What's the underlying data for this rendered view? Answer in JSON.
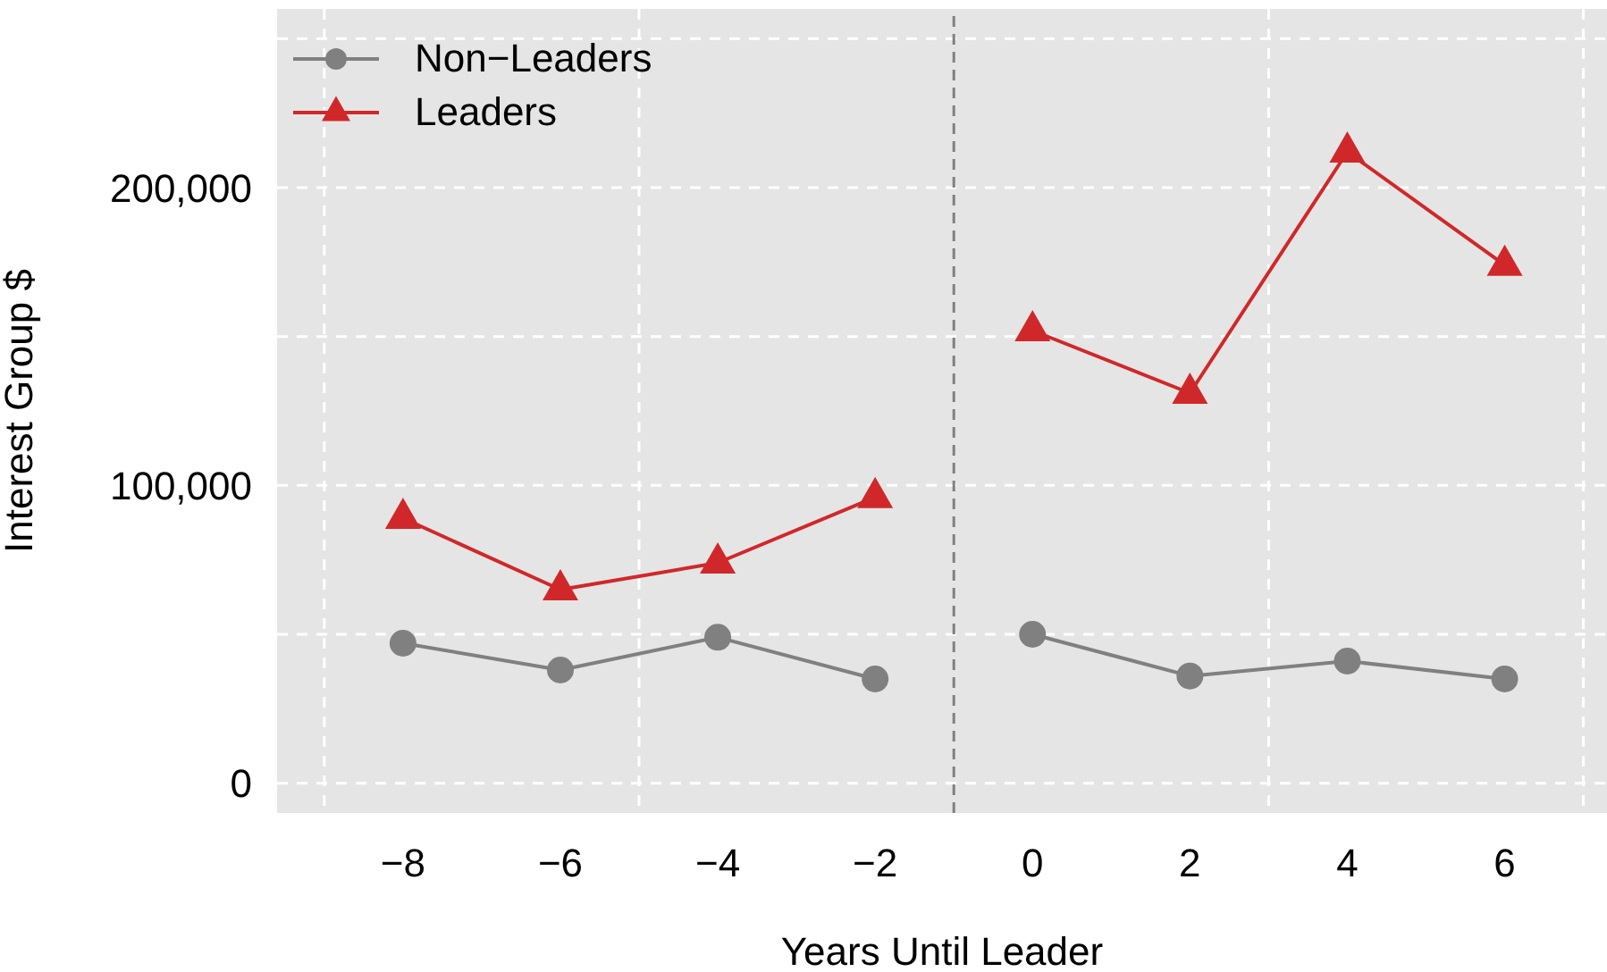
{
  "chart_data": {
    "type": "line",
    "xlabel": "Years Until Leader",
    "ylabel": "Interest Group $",
    "x": [
      -8,
      -6,
      -4,
      -2,
      -1,
      0,
      2,
      4,
      6
    ],
    "series": [
      {
        "name": "Non−Leaders",
        "color": "#808080",
        "marker": "circle",
        "values": [
          47000,
          38000,
          49000,
          35000,
          null,
          50000,
          36000,
          41000,
          35000
        ]
      },
      {
        "name": "Leaders",
        "color": "#d0282a",
        "marker": "triangle",
        "values": [
          89000,
          65000,
          74000,
          96000,
          null,
          152000,
          131000,
          212000,
          174000
        ]
      }
    ],
    "xlim": [
      -9.6,
      7.3
    ],
    "xticks": [
      {
        "value": -9,
        "label": null
      },
      {
        "value": -8,
        "label": "−8"
      },
      {
        "value": -6,
        "label": "−6"
      },
      {
        "value": -5,
        "label": null
      },
      {
        "value": -4,
        "label": "−4"
      },
      {
        "value": -2,
        "label": "−2"
      },
      0,
      2,
      {
        "value": 3,
        "label": null
      },
      4,
      6,
      {
        "value": 7,
        "label": null
      }
    ],
    "ylim": [
      -10000,
      260000
    ],
    "yticks": [
      {
        "value": 0,
        "label": "0"
      },
      {
        "value": 50000,
        "label": null
      },
      {
        "value": 100000,
        "label": "100,000"
      },
      {
        "value": 150000,
        "label": null
      },
      {
        "value": 200000,
        "label": "200,000"
      },
      {
        "value": 250000,
        "label": null
      }
    ],
    "ref_lines": [
      {
        "axis": "x",
        "value": -1,
        "color": "#808080",
        "line_style": "dashed"
      }
    ],
    "grid": true,
    "legend": "top left",
    "line_style": "solid"
  }
}
